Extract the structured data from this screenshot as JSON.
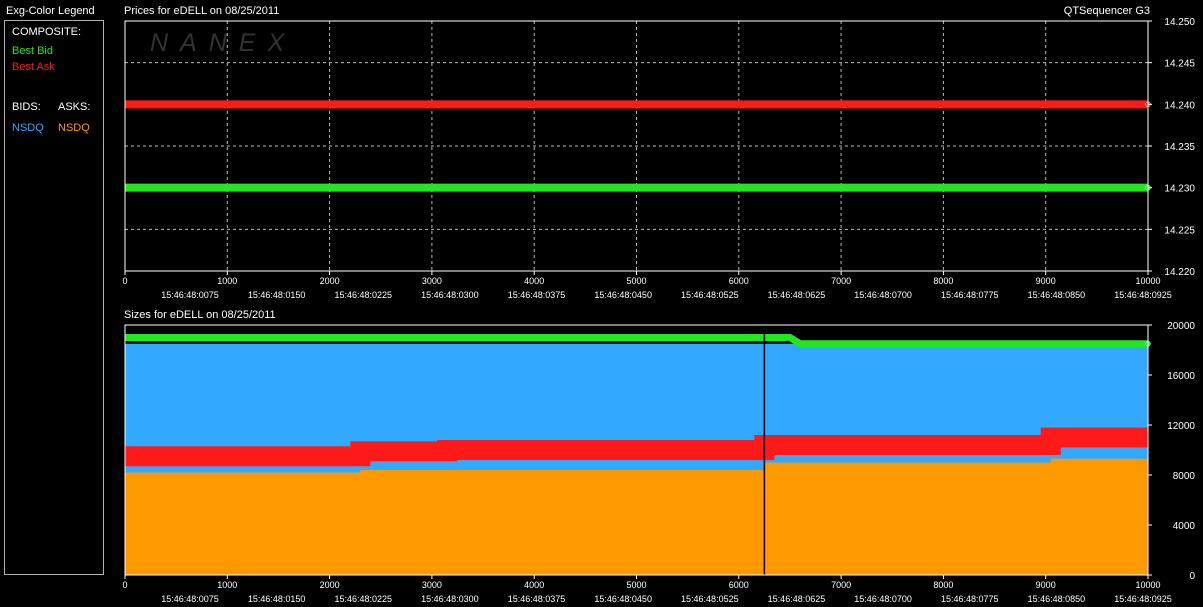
{
  "legend": {
    "title": "Exg-Color Legend",
    "composite_label": "COMPOSITE:",
    "best_bid": "Best Bid",
    "best_ask": "Best Ask",
    "bids_label": "BIDS:",
    "asks_label": "ASKS:",
    "bid_exchange": "NSDQ",
    "ask_exchange": "NSDQ"
  },
  "app": {
    "title": "QTSequencer G3"
  },
  "colors": {
    "best_bid": "#22e622",
    "best_ask": "#ff1a1a",
    "bid_nsdq": "#33a8ff",
    "ask_nsdq": "#ff9900",
    "grid": "#bbbbbb",
    "axis": "#ffffff"
  },
  "watermark": "NANEX",
  "chart_data": [
    {
      "type": "line",
      "title": "Prices for  eDELL  on  08/25/2011",
      "x_ticks": [
        "0",
        "1000",
        "2000",
        "3000",
        "4000",
        "5000",
        "6000",
        "7000",
        "8000",
        "9000",
        "10000"
      ],
      "x_time_labels": [
        "15:46:48:0075",
        "15:46:48:0150",
        "15:46:48:0225",
        "15:46:48:0300",
        "15:46:48:0375",
        "15:46:48:0450",
        "15:46:48:0525",
        "15:46:48:0625",
        "15:46:48:0700",
        "15:46:48:0775",
        "15:46:48:0850",
        "15:46:48:0925"
      ],
      "y_ticks": [
        "14.220",
        "14.225",
        "14.230",
        "14.235",
        "14.240",
        "14.245",
        "14.250"
      ],
      "xlim": [
        0,
        10000
      ],
      "ylim": [
        14.22,
        14.25
      ],
      "grid": true,
      "series": [
        {
          "name": "Best Ask",
          "x": [
            0,
            10000
          ],
          "values": [
            14.24,
            14.24
          ]
        },
        {
          "name": "Best Bid",
          "x": [
            0,
            10000
          ],
          "values": [
            14.23,
            14.23
          ]
        }
      ]
    },
    {
      "type": "area",
      "title": "Sizes for  eDELL  on  08/25/2011",
      "x_ticks": [
        "0",
        "1000",
        "2000",
        "3000",
        "4000",
        "5000",
        "6000",
        "7000",
        "8000",
        "9000",
        "10000"
      ],
      "x_time_labels": [
        "15:46:48:0075",
        "15:46:48:0150",
        "15:46:48:0225",
        "15:46:48:0300",
        "15:46:48:0375",
        "15:46:48:0450",
        "15:46:48:0525",
        "15:46:48:0625",
        "15:46:48:0700",
        "15:46:48:0775",
        "15:46:48:0850",
        "15:46:48:0925"
      ],
      "y_ticks": [
        "0",
        "4000",
        "8000",
        "12000",
        "16000",
        "20000"
      ],
      "xlim": [
        0,
        10000
      ],
      "ylim": [
        0,
        20000
      ],
      "grid": false,
      "marker_x": 6250,
      "series": [
        {
          "name": "Best Bid",
          "x": [
            0,
            6500,
            6600,
            10000
          ],
          "values": [
            19000,
            19000,
            18500,
            18500
          ]
        },
        {
          "name": "Best Ask",
          "x": [
            0,
            2300,
            2300,
            3150,
            3150,
            6250,
            6250,
            9050,
            9050,
            10000
          ],
          "values": [
            9500,
            9500,
            9900,
            9900,
            10000,
            10000,
            10400,
            10400,
            11000,
            11000
          ]
        },
        {
          "name": "NSDQ",
          "x": [
            0,
            10000
          ],
          "values": [
            18500,
            18500
          ]
        },
        {
          "name": "NSDQ",
          "x": [
            0,
            2300,
            2300,
            6250,
            6250,
            9050,
            9050,
            10000
          ],
          "values": [
            8200,
            8200,
            8400,
            8400,
            9000,
            9000,
            9300,
            9300
          ]
        }
      ]
    }
  ]
}
